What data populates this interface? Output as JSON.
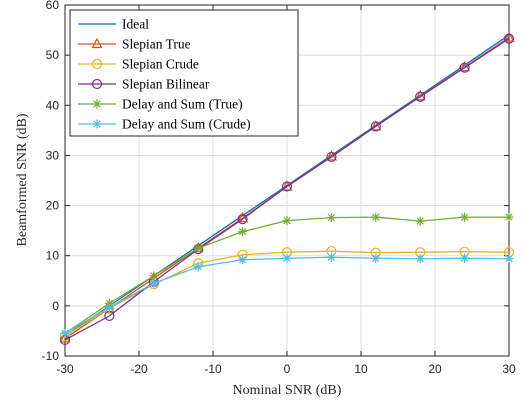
{
  "chart_data": {
    "type": "line",
    "title": "",
    "xlabel": "Nominal SNR (dB)",
    "ylabel": "Beamformed SNR (dB)",
    "xlim": [
      -30,
      30
    ],
    "ylim": [
      -10,
      60
    ],
    "xticks": [
      -30,
      -20,
      -10,
      0,
      10,
      20,
      30
    ],
    "yticks": [
      -10,
      0,
      10,
      20,
      30,
      40,
      50,
      60
    ],
    "grid": true,
    "legend_position": "top-left",
    "x": [
      -30,
      -24,
      -18,
      -12,
      -6,
      0,
      6,
      12,
      18,
      24,
      30
    ],
    "series": [
      {
        "name": "Ideal",
        "color": "#0072BD",
        "marker": "none",
        "values": [
          -6,
          0,
          6,
          12,
          18,
          24,
          30,
          36,
          42,
          48,
          54
        ]
      },
      {
        "name": "Slepian True",
        "color": "#D95319",
        "marker": "triangle",
        "values": [
          -6.5,
          -0.5,
          5.5,
          11.5,
          17.5,
          23.8,
          29.8,
          35.8,
          41.8,
          47.6,
          53.5
        ]
      },
      {
        "name": "Slepian Crude",
        "color": "#EDB120",
        "marker": "circle",
        "values": [
          -6,
          -0.5,
          4.3,
          8.5,
          10.2,
          10.7,
          10.9,
          10.6,
          10.7,
          10.8,
          10.7
        ]
      },
      {
        "name": "Slepian Bilinear",
        "color": "#7E2F8E",
        "marker": "circle",
        "values": [
          -6.8,
          -2,
          4.8,
          11.3,
          17.3,
          23.8,
          29.7,
          35.8,
          41.7,
          47.5,
          53.3
        ]
      },
      {
        "name": "Delay and Sum (True)",
        "color": "#77AC30",
        "marker": "asterisk",
        "values": [
          -5.5,
          0.5,
          6,
          11.5,
          14.8,
          17,
          17.6,
          17.7,
          16.9,
          17.7,
          17.7
        ]
      },
      {
        "name": "Delay and Sum (Crude)",
        "color": "#4DBEEE",
        "marker": "asterisk",
        "values": [
          -5.5,
          -0.3,
          4.5,
          7.8,
          9.2,
          9.5,
          9.7,
          9.5,
          9.4,
          9.5,
          9.4
        ]
      }
    ]
  }
}
